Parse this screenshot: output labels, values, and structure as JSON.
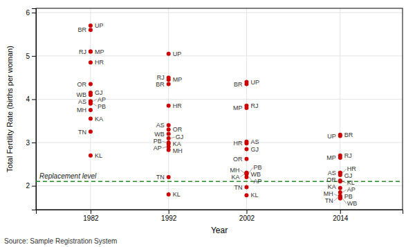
{
  "chart_data": {
    "type": "scatter",
    "xlabel": "Year",
    "ylabel": "Total Fertility Rate (births per woman)",
    "x": [
      1982,
      1992,
      2002,
      2014
    ],
    "series": [
      {
        "name": "UP",
        "values": [
          5.7,
          5.05,
          4.4,
          3.15
        ]
      },
      {
        "name": "BR",
        "values": [
          5.6,
          4.35,
          4.35,
          3.18
        ]
      },
      {
        "name": "MP",
        "values": [
          5.1,
          4.45,
          3.8,
          2.65
        ]
      },
      {
        "name": "RJ",
        "values": [
          5.1,
          4.5,
          3.85,
          2.7
        ]
      },
      {
        "name": "HR",
        "values": [
          4.85,
          3.85,
          2.98,
          2.3
        ]
      },
      {
        "name": "OR",
        "values": [
          4.35,
          3.3,
          2.62,
          2.12
        ]
      },
      {
        "name": "GJ",
        "values": [
          4.15,
          3.1,
          2.85,
          2.25
        ]
      },
      {
        "name": "WB",
        "values": [
          4.1,
          3.2,
          2.28,
          1.71
        ]
      },
      {
        "name": "AP",
        "values": [
          3.95,
          2.9,
          2.2,
          1.85
        ]
      },
      {
        "name": "AS",
        "values": [
          3.95,
          3.4,
          3.02,
          2.3
        ]
      },
      {
        "name": "PB",
        "values": [
          3.9,
          3.0,
          2.3,
          1.73
        ]
      },
      {
        "name": "MH",
        "values": [
          3.75,
          2.83,
          2.3,
          1.77
        ]
      },
      {
        "name": "KA",
        "values": [
          3.55,
          2.97,
          2.27,
          1.95
        ]
      },
      {
        "name": "TN",
        "values": [
          3.25,
          2.2,
          1.97,
          1.73
        ]
      },
      {
        "name": "KL",
        "values": [
          2.7,
          1.8,
          1.78,
          2.1
        ]
      }
    ],
    "color": "#cc0000",
    "xlim": [
      1975,
      2022
    ],
    "ylim": [
      1.45,
      6.1
    ],
    "xticks": [
      1982,
      1992,
      2002,
      2014
    ],
    "yticks": [
      2,
      3,
      4,
      5,
      6
    ],
    "grid": true,
    "annotations": [
      {
        "text": "Replacement level",
        "y": 2.1,
        "color": "#228b22"
      }
    ],
    "source": "Source: Sample Registration System"
  }
}
